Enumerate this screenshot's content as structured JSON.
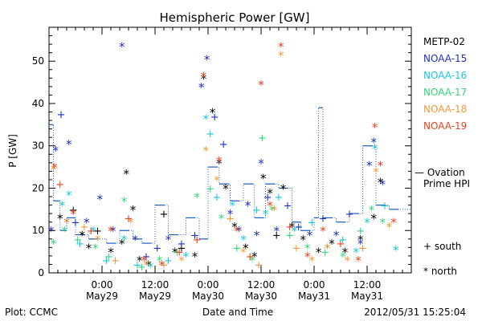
{
  "chart_data": {
    "type": "scatter",
    "title": "Hemispheric Power [GW]",
    "ylabel": "P [GW]",
    "xlabel": "Date and Time",
    "ylim": [
      0,
      58
    ],
    "yticks": [
      0,
      10,
      20,
      30,
      40,
      50
    ],
    "xlim": [
      "2012-05-28T12:00",
      "2012-05-31T22:00"
    ],
    "xticks": [
      {
        "t": "2012-05-29T00:00",
        "line1": "0:00",
        "line2": "May29"
      },
      {
        "t": "2012-05-29T12:00",
        "line1": "12:00",
        "line2": "May29"
      },
      {
        "t": "2012-05-30T00:00",
        "line1": "0:00",
        "line2": "May30"
      },
      {
        "t": "2012-05-30T12:00",
        "line1": "12:00",
        "line2": "May30"
      },
      {
        "t": "2012-05-31T00:00",
        "line1": "0:00",
        "line2": "May31"
      },
      {
        "t": "2012-05-31T12:00",
        "line1": "12:00",
        "line2": "May31"
      }
    ],
    "footer_left": "Plot: CCMC",
    "footer_right": "2012/05/31  15:25:04",
    "marker_legend": [
      {
        "symbol": "+",
        "label": "south"
      },
      {
        "symbol": "*",
        "label": "north"
      }
    ],
    "ovation_label_line1": "— Ovation",
    "ovation_label_line2": "Prime HPI",
    "ovation_color": "#1f5fbf",
    "series": [
      {
        "name": "METP-02",
        "color": "#000000",
        "points": [
          [
            "2012-05-28T14:30",
            "*",
            13
          ],
          [
            "2012-05-28T16:00",
            "*",
            12
          ],
          [
            "2012-05-28T17:30",
            "+",
            15
          ],
          [
            "2012-05-28T19:30",
            "*",
            9
          ],
          [
            "2012-05-28T21:00",
            "*",
            6
          ],
          [
            "2012-05-28T23:00",
            "+",
            10
          ],
          [
            "2012-05-29T02:00",
            "*",
            5
          ],
          [
            "2012-05-29T04:30",
            "*",
            7
          ],
          [
            "2012-05-29T05:30",
            "*",
            23.5
          ],
          [
            "2012-05-29T07:00",
            "*",
            15
          ],
          [
            "2012-05-29T08:30",
            "*",
            3
          ],
          [
            "2012-05-29T10:30",
            "*",
            2
          ],
          [
            "2012-05-29T14:00",
            "+",
            14
          ],
          [
            "2012-05-29T16:30",
            "*",
            5
          ],
          [
            "2012-05-29T18:00",
            "+",
            6
          ],
          [
            "2012-05-29T21:00",
            "*",
            4
          ],
          [
            "2012-05-29T23:00",
            "*",
            46
          ],
          [
            "2012-05-30T01:00",
            "*",
            38
          ],
          [
            "2012-05-30T02:30",
            "*",
            26
          ],
          [
            "2012-05-30T04:00",
            "*",
            20
          ],
          [
            "2012-05-30T06:00",
            "*",
            11
          ],
          [
            "2012-05-30T08:30",
            "*",
            6
          ],
          [
            "2012-05-30T10:30",
            "*",
            4
          ],
          [
            "2012-05-30T12:30",
            "*",
            22.5
          ],
          [
            "2012-05-30T14:00",
            "*",
            19
          ],
          [
            "2012-05-30T15:30",
            "+",
            9
          ],
          [
            "2012-05-30T17:00",
            "*",
            20
          ],
          [
            "2012-05-30T19:00",
            "*",
            11
          ],
          [
            "2012-05-30T21:30",
            "*",
            8
          ],
          [
            "2012-05-31T01:00",
            "*",
            5
          ],
          [
            "2012-05-31T04:00",
            "*",
            7
          ],
          [
            "2012-05-31T07:00",
            "*",
            5
          ],
          [
            "2012-05-31T10:30",
            "*",
            8
          ],
          [
            "2012-05-31T13:30",
            "*",
            13
          ],
          [
            "2012-05-31T15:00",
            "*",
            21.5
          ]
        ]
      },
      {
        "name": "NOAA-15",
        "color": "#1c2fc9",
        "points": [
          [
            "2012-05-28T12:30",
            "*",
            10
          ],
          [
            "2012-05-28T13:30",
            "*",
            29
          ],
          [
            "2012-05-28T14:45",
            "+",
            37.5
          ],
          [
            "2012-05-28T16:30",
            "*",
            30.5
          ],
          [
            "2012-05-28T18:00",
            "+",
            12
          ],
          [
            "2012-05-28T20:30",
            "*",
            12
          ],
          [
            "2012-05-28T23:30",
            "*",
            17.5
          ],
          [
            "2012-05-29T02:30",
            "*",
            10
          ],
          [
            "2012-05-29T04:30",
            "*",
            53.5
          ],
          [
            "2012-05-29T07:30",
            "*",
            8
          ],
          [
            "2012-05-29T10:00",
            "+",
            4
          ],
          [
            "2012-05-29T12:30",
            "+",
            6
          ],
          [
            "2012-05-29T15:00",
            "*",
            8
          ],
          [
            "2012-05-29T18:00",
            "+",
            7
          ],
          [
            "2012-05-29T21:00",
            "+",
            9
          ],
          [
            "2012-05-29T22:30",
            "*",
            44
          ],
          [
            "2012-05-29T23:45",
            "*",
            50.5
          ],
          [
            "2012-05-30T01:30",
            "+",
            37
          ],
          [
            "2012-05-30T03:30",
            "+",
            30.5
          ],
          [
            "2012-05-30T05:00",
            "*",
            14
          ],
          [
            "2012-05-30T07:00",
            "*",
            10
          ],
          [
            "2012-05-30T09:00",
            "*",
            16
          ],
          [
            "2012-05-30T11:00",
            "*",
            9
          ],
          [
            "2012-05-30T12:00",
            "*",
            26
          ],
          [
            "2012-05-30T13:30",
            "+",
            18
          ],
          [
            "2012-05-30T15:30",
            "*",
            10
          ],
          [
            "2012-05-30T18:00",
            "+",
            16
          ],
          [
            "2012-05-30T20:30",
            "+",
            11
          ],
          [
            "2012-05-30T23:00",
            "*",
            9
          ],
          [
            "2012-05-31T02:00",
            "+",
            13
          ],
          [
            "2012-05-31T05:00",
            "*",
            9
          ],
          [
            "2012-05-31T08:00",
            "+",
            14
          ],
          [
            "2012-05-31T10:30",
            "*",
            7
          ],
          [
            "2012-05-31T12:30",
            "*",
            25.5
          ],
          [
            "2012-05-31T13:30",
            "*",
            31
          ],
          [
            "2012-05-31T15:30",
            "*",
            21
          ]
        ]
      },
      {
        "name": "NOAA-16",
        "color": "#18c8d8",
        "points": [
          [
            "2012-05-28T15:00",
            "*",
            16
          ],
          [
            "2012-05-28T16:30",
            "*",
            18.5
          ],
          [
            "2012-05-28T19:00",
            "+",
            7
          ],
          [
            "2012-05-28T22:00",
            "*",
            10
          ],
          [
            "2012-05-29T01:00",
            "+",
            3
          ],
          [
            "2012-05-29T05:00",
            "*",
            8
          ],
          [
            "2012-05-29T08:00",
            "+",
            2
          ],
          [
            "2012-05-29T11:00",
            "*",
            1.5
          ],
          [
            "2012-05-29T15:00",
            "+",
            3
          ],
          [
            "2012-05-29T19:00",
            "*",
            4
          ],
          [
            "2012-05-29T23:30",
            "*",
            36.5
          ],
          [
            "2012-05-30T00:30",
            "+",
            33
          ],
          [
            "2012-05-30T02:00",
            "+",
            18
          ],
          [
            "2012-05-30T05:30",
            "*",
            16
          ],
          [
            "2012-05-30T08:00",
            "*",
            8
          ],
          [
            "2012-05-30T11:00",
            "+",
            15
          ],
          [
            "2012-05-30T13:00",
            "*",
            14
          ],
          [
            "2012-05-30T16:00",
            "+",
            18
          ],
          [
            "2012-05-30T19:30",
            "*",
            10
          ],
          [
            "2012-05-30T23:30",
            "+",
            12
          ],
          [
            "2012-05-31T03:00",
            "*",
            6
          ],
          [
            "2012-05-31T06:30",
            "+",
            8
          ],
          [
            "2012-05-31T09:30",
            "*",
            5
          ],
          [
            "2012-05-31T12:00",
            "*",
            12
          ],
          [
            "2012-05-31T13:45",
            "*",
            29.5
          ],
          [
            "2012-05-31T16:00",
            "+",
            16
          ],
          [
            "2012-05-31T18:30",
            "*",
            5.5
          ]
        ]
      },
      {
        "name": "NOAA-17",
        "color": "#33d87a",
        "points": [
          [
            "2012-05-28T13:00",
            "*",
            7
          ],
          [
            "2012-05-28T15:30",
            "*",
            10
          ],
          [
            "2012-05-28T18:30",
            "+",
            8
          ],
          [
            "2012-05-28T22:30",
            "*",
            6
          ],
          [
            "2012-05-29T01:30",
            "+",
            4
          ],
          [
            "2012-05-29T05:00",
            "*",
            17
          ],
          [
            "2012-05-29T09:00",
            "+",
            1.5
          ],
          [
            "2012-05-29T13:00",
            "*",
            3
          ],
          [
            "2012-05-29T17:00",
            "+",
            5
          ],
          [
            "2012-05-29T21:30",
            "*",
            18
          ],
          [
            "2012-05-30T00:30",
            "+",
            20
          ],
          [
            "2012-05-30T03:00",
            "*",
            13
          ],
          [
            "2012-05-30T06:30",
            "+",
            6
          ],
          [
            "2012-05-30T10:00",
            "*",
            3
          ],
          [
            "2012-05-30T12:15",
            "+",
            32
          ],
          [
            "2012-05-30T14:30",
            "*",
            15
          ],
          [
            "2012-05-30T18:30",
            "+",
            9
          ],
          [
            "2012-05-30T22:30",
            "*",
            6
          ],
          [
            "2012-05-31T02:30",
            "+",
            5
          ],
          [
            "2012-05-31T06:30",
            "*",
            4
          ],
          [
            "2012-05-31T10:30",
            "+",
            10
          ],
          [
            "2012-05-31T13:00",
            "*",
            15
          ],
          [
            "2012-05-31T15:30",
            "*",
            12
          ]
        ]
      },
      {
        "name": "NOAA-18",
        "color": "#f09a3a",
        "points": [
          [
            "2012-05-28T13:00",
            "*",
            24.5
          ],
          [
            "2012-05-28T16:00",
            "*",
            12
          ],
          [
            "2012-05-28T20:00",
            "+",
            11
          ],
          [
            "2012-05-28T23:00",
            "*",
            8
          ],
          [
            "2012-05-29T03:00",
            "+",
            3
          ],
          [
            "2012-05-29T06:30",
            "*",
            12
          ],
          [
            "2012-05-29T10:00",
            "*",
            2
          ],
          [
            "2012-05-29T14:00",
            "+",
            2
          ],
          [
            "2012-05-29T18:00",
            "*",
            3
          ],
          [
            "2012-05-29T23:30",
            "*",
            29
          ],
          [
            "2012-05-30T02:00",
            "*",
            22
          ],
          [
            "2012-05-30T05:00",
            "+",
            13
          ],
          [
            "2012-05-30T08:00",
            "*",
            5
          ],
          [
            "2012-05-30T11:30",
            "+",
            2
          ],
          [
            "2012-05-30T15:00",
            "*",
            15
          ],
          [
            "2012-05-30T16:30",
            "*",
            51.5
          ],
          [
            "2012-05-30T20:00",
            "+",
            6
          ],
          [
            "2012-05-30T23:30",
            "*",
            3
          ],
          [
            "2012-05-31T03:00",
            "*",
            6
          ],
          [
            "2012-05-31T07:30",
            "*",
            3
          ],
          [
            "2012-05-31T11:00",
            "+",
            6
          ],
          [
            "2012-05-31T14:00",
            "*",
            24
          ],
          [
            "2012-05-31T17:00",
            "*",
            11
          ]
        ]
      },
      {
        "name": "NOAA-19",
        "color": "#e8431c",
        "points": [
          [
            "2012-05-28T13:15",
            "*",
            25
          ],
          [
            "2012-05-28T14:30",
            "+",
            21
          ],
          [
            "2012-05-28T17:30",
            "*",
            14
          ],
          [
            "2012-05-28T21:30",
            "+",
            10
          ],
          [
            "2012-05-29T02:00",
            "*",
            10
          ],
          [
            "2012-05-29T06:00",
            "+",
            13
          ],
          [
            "2012-05-29T09:30",
            "*",
            3
          ],
          [
            "2012-05-29T13:30",
            "*",
            2
          ],
          [
            "2012-05-29T17:30",
            "+",
            5
          ],
          [
            "2012-05-29T21:30",
            "+",
            8
          ],
          [
            "2012-05-29T23:00",
            "*",
            46.5
          ],
          [
            "2012-05-30T02:30",
            "*",
            26.5
          ],
          [
            "2012-05-30T06:30",
            "*",
            10
          ],
          [
            "2012-05-30T09:30",
            "+",
            4
          ],
          [
            "2012-05-30T12:00",
            "*",
            44.5
          ],
          [
            "2012-05-30T14:00",
            "*",
            16
          ],
          [
            "2012-05-30T16:30",
            "*",
            53.5
          ],
          [
            "2012-05-30T18:30",
            "+",
            11
          ],
          [
            "2012-05-30T22:30",
            "*",
            4
          ],
          [
            "2012-05-31T02:00",
            "*",
            10
          ],
          [
            "2012-05-31T06:00",
            "+",
            7
          ],
          [
            "2012-05-31T10:00",
            "*",
            3
          ],
          [
            "2012-05-31T13:45",
            "*",
            34.5
          ],
          [
            "2012-05-31T15:00",
            "*",
            25.5
          ],
          [
            "2012-05-31T18:00",
            "*",
            12
          ]
        ]
      }
    ],
    "ovation_steps": [
      [
        "2012-05-28T12:00",
        35
      ],
      [
        "2012-05-28T13:00",
        17
      ],
      [
        "2012-05-28T14:30",
        10
      ],
      [
        "2012-05-28T16:00",
        13
      ],
      [
        "2012-05-28T18:00",
        9
      ],
      [
        "2012-05-28T21:00",
        8
      ],
      [
        "2012-05-29T01:00",
        7
      ],
      [
        "2012-05-29T04:00",
        10
      ],
      [
        "2012-05-29T07:00",
        8
      ],
      [
        "2012-05-29T09:00",
        7
      ],
      [
        "2012-05-29T12:00",
        16
      ],
      [
        "2012-05-29T15:00",
        9
      ],
      [
        "2012-05-29T19:00",
        13
      ],
      [
        "2012-05-29T22:00",
        8
      ],
      [
        "2012-05-30T00:00",
        25
      ],
      [
        "2012-05-30T02:30",
        21
      ],
      [
        "2012-05-30T05:00",
        17
      ],
      [
        "2012-05-30T08:00",
        21
      ],
      [
        "2012-05-30T10:30",
        13
      ],
      [
        "2012-05-30T13:00",
        21
      ],
      [
        "2012-05-30T16:00",
        20
      ],
      [
        "2012-05-30T19:00",
        12
      ],
      [
        "2012-05-30T21:00",
        10
      ],
      [
        "2012-05-31T00:00",
        13
      ],
      [
        "2012-05-31T01:00",
        39
      ],
      [
        "2012-05-31T02:00",
        13
      ],
      [
        "2012-05-31T05:00",
        12
      ],
      [
        "2012-05-31T08:00",
        14
      ],
      [
        "2012-05-31T11:00",
        30
      ],
      [
        "2012-05-31T14:00",
        16
      ],
      [
        "2012-05-31T17:00",
        15
      ]
    ]
  }
}
